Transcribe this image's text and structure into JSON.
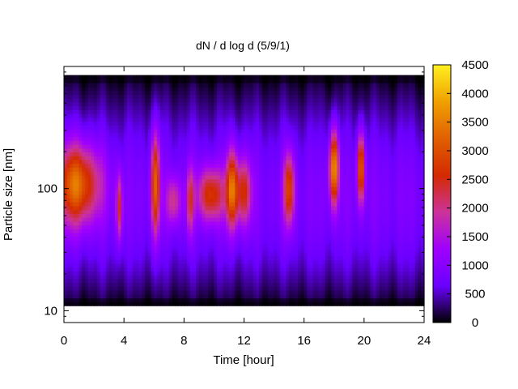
{
  "chart_data": {
    "type": "heatmap",
    "title": "dN / d log d (5/9/1)",
    "xlabel": "Time [hour]",
    "ylabel": "Particle size [nm]",
    "xlim": [
      0,
      24
    ],
    "x_ticks": [
      "0",
      "4",
      "8",
      "12",
      "16",
      "20",
      "24"
    ],
    "y_scale": "log",
    "ylim": [
      8,
      1000
    ],
    "y_ticks": [
      "10",
      "100"
    ],
    "colorbar": {
      "range": [
        0,
        4500
      ],
      "ticks": [
        "0",
        "500",
        "1000",
        "1500",
        "2000",
        "2500",
        "3000",
        "3500",
        "4000",
        "4500"
      ],
      "palette": [
        "#000000",
        "#6a00ff",
        "#a000ff",
        "#cc3399",
        "#d42a00",
        "#e06000",
        "#f0a000",
        "#fff020"
      ]
    },
    "grid": false,
    "legend": "colorbar-right",
    "data_lower_size_bound_nm": 11,
    "data_upper_size_bound_nm": 850,
    "background_level": 1000,
    "events": [
      {
        "time": 0.5,
        "center_nm": 110,
        "peak": 2700,
        "width_h": 0.9,
        "spread": 0.33
      },
      {
        "time": 1.5,
        "center_nm": 110,
        "peak": 2500,
        "width_h": 1.2,
        "spread": 0.32
      },
      {
        "time": 3.7,
        "center_nm": 70,
        "peak": 2600,
        "width_h": 0.2,
        "spread": 0.28
      },
      {
        "time": 6.1,
        "center_nm": 110,
        "peak": 3300,
        "width_h": 0.3,
        "spread": 0.42
      },
      {
        "time": 7.3,
        "center_nm": 80,
        "peak": 2200,
        "width_h": 0.5,
        "spread": 0.2
      },
      {
        "time": 8.4,
        "center_nm": 80,
        "peak": 2400,
        "width_h": 0.25,
        "spread": 0.28
      },
      {
        "time": 9.8,
        "center_nm": 90,
        "peak": 2900,
        "width_h": 0.9,
        "spread": 0.22
      },
      {
        "time": 11.2,
        "center_nm": 100,
        "peak": 3400,
        "width_h": 0.4,
        "spread": 0.32
      },
      {
        "time": 12.0,
        "center_nm": 95,
        "peak": 2700,
        "width_h": 0.5,
        "spread": 0.27
      },
      {
        "time": 15.0,
        "center_nm": 100,
        "peak": 3100,
        "width_h": 0.35,
        "spread": 0.3
      },
      {
        "time": 18.0,
        "center_nm": 150,
        "peak": 4000,
        "width_h": 0.3,
        "spread": 0.3
      },
      {
        "time": 19.8,
        "center_nm": 150,
        "peak": 3500,
        "width_h": 0.25,
        "spread": 0.28
      }
    ]
  }
}
